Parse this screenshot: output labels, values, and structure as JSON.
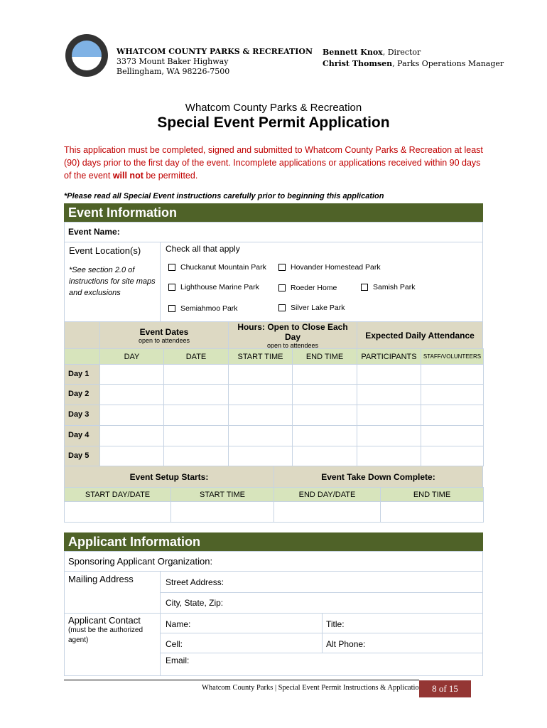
{
  "header": {
    "org": "WHATCOM COUNTY PARKS & RECREATION",
    "address1": "3373 Mount Baker Highway",
    "address2": "Bellingham, WA  98226-7500",
    "director_name": "Bennett Knox",
    "director_title": ", Director",
    "manager_name": "Christ Thomsen",
    "manager_title": ", Parks Operations Manager",
    "logo_text": "WHATCOM COUNTY PARKS & RECREATION"
  },
  "title": {
    "sub": "Whatcom County Parks & Recreation",
    "main": "Special Event Permit Application"
  },
  "notice": {
    "part1": "This application must be completed, signed and submitted to Whatcom County Parks & Recreation at least (90) days prior to the first day of the event. Incomplete applications or applications received within 90 days of the event ",
    "bold": "will not",
    "part2": " be permitted.",
    "instruction": "*Please read all Special Event instructions carefully prior to beginning this application"
  },
  "event": {
    "section": "Event Information",
    "name_label": "Event Name:",
    "location_label": "Event Location(s)",
    "location_note": "*See section 2.0 of instructions for site maps and exclusions",
    "check_label": "Check all that apply",
    "parks": [
      "Chuckanut Mountain Park",
      "Hovander Homestead Park",
      "Lighthouse Marine Park",
      "Roeder Home",
      "Samish Park",
      "Semiahmoo Park",
      "Silver Lake Park"
    ],
    "dates_head": "Event Dates",
    "dates_sub": "open to attendees",
    "hours_head": "Hours: Open to Close Each Day",
    "hours_sub": "open to attendees",
    "attendance_head": "Expected Daily Attendance",
    "cols": [
      "DAY",
      "DATE",
      "START TIME",
      "END TIME",
      "PARTICIPANTS",
      "STAFF/VOLUNTEERS"
    ],
    "days": [
      "Day 1",
      "Day 2",
      "Day 3",
      "Day 4",
      "Day 5"
    ],
    "setup_head": "Event Setup Starts:",
    "takedown_head": "Event Take Down Complete:",
    "setup_cols": [
      "START DAY/DATE",
      "START TIME",
      "END DAY/DATE",
      "END TIME"
    ]
  },
  "applicant": {
    "section": "Applicant Information",
    "sponsor": "Sponsoring Applicant Organization:",
    "mailing": "Mailing Address",
    "street": "Street Address:",
    "city": "City, State, Zip:",
    "contact": "Applicant Contact",
    "contact_note": "(must be the authorized agent)",
    "name": "Name:",
    "title": "Title:",
    "cell": "Cell:",
    "alt_phone": "Alt Phone:",
    "email": "Email:"
  },
  "footer": {
    "text": "Whatcom County Parks | Special Event Permit Instructions & Application",
    "page": "8 of 15"
  },
  "colors": {
    "section": "#4f6228",
    "tan": "#ddd9c3",
    "green": "#d7e4bc",
    "notice": "#c00000",
    "page_box": "#943634"
  }
}
